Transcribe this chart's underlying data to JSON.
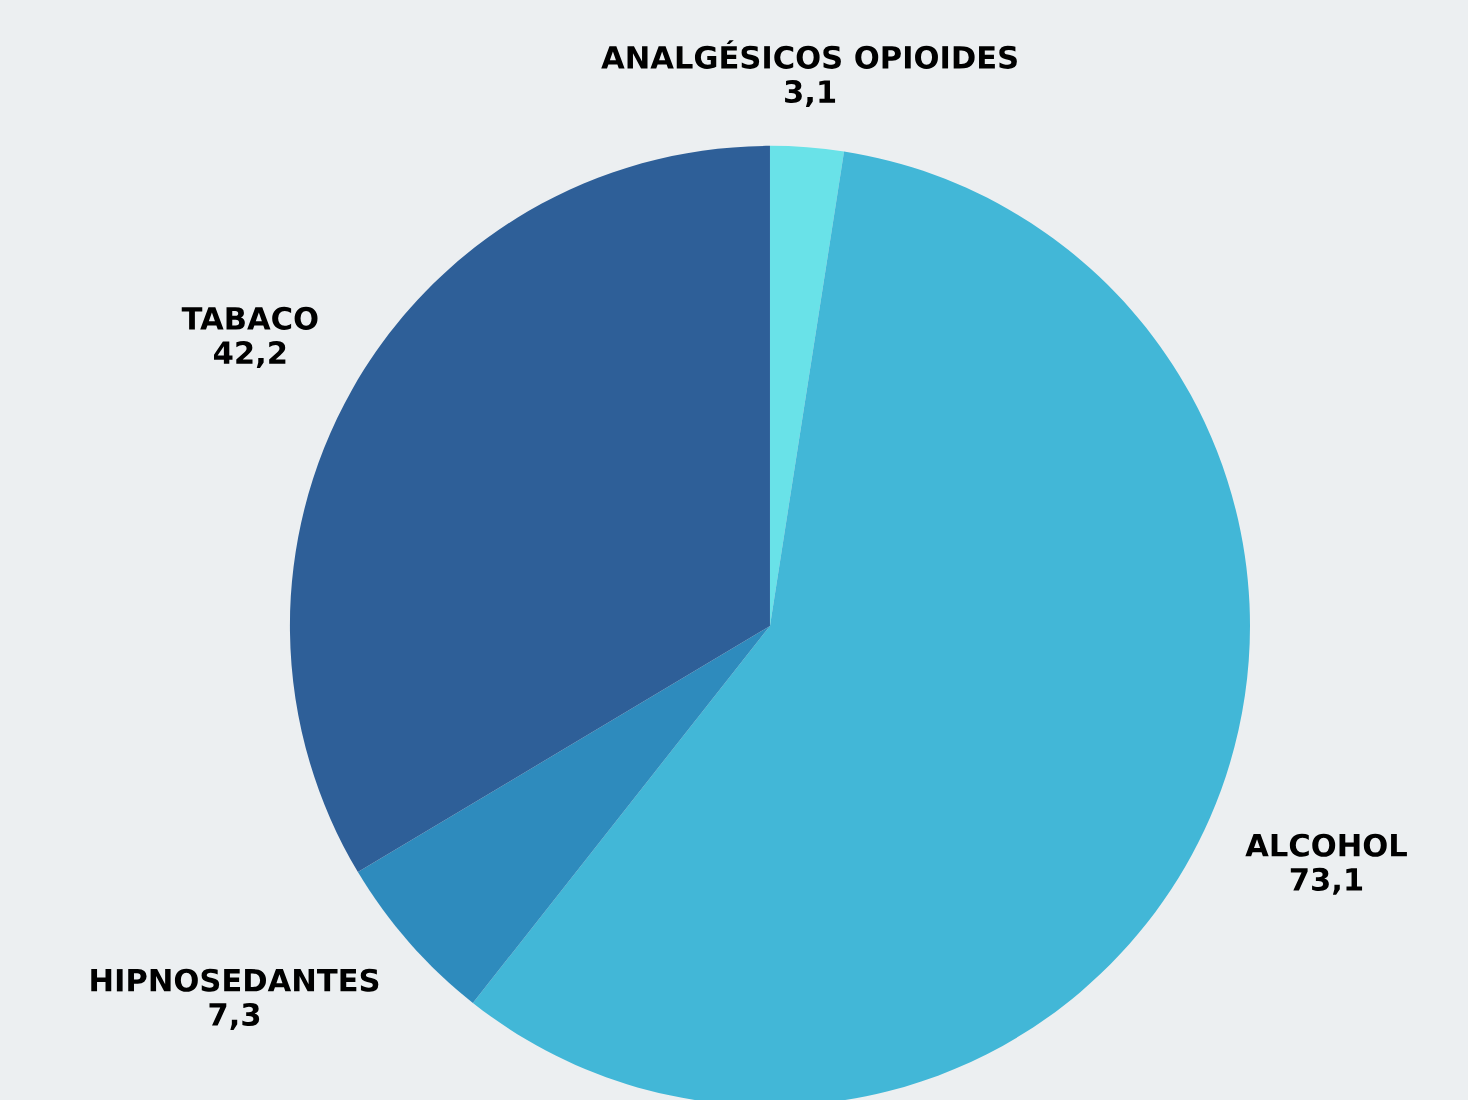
{
  "chart_data": {
    "type": "pie",
    "categories": [
      "ANALGÉSICOS OPIOIDES",
      "ALCOHOL",
      "HIPNOSEDANTES",
      "TABACO"
    ],
    "values": [
      3.1,
      73.1,
      7.3,
      42.2
    ],
    "value_labels": [
      "3,1",
      "73,1",
      "7,3",
      "42,2"
    ],
    "colors": [
      "#69e2e8",
      "#42b7d7",
      "#2e8bbd",
      "#2e5f98"
    ],
    "legend": false
  }
}
